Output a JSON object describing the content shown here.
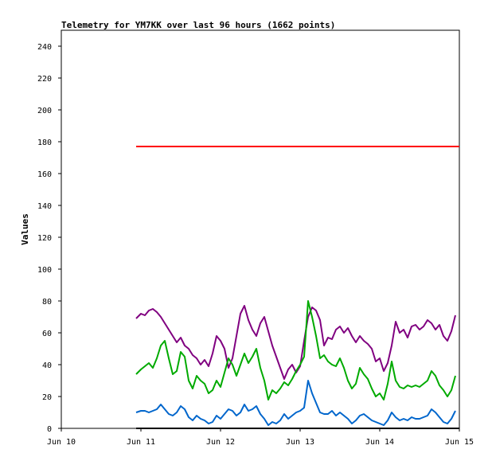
{
  "chart_data": {
    "type": "line",
    "title": "Telemetry for YM7KK over last 96 hours (1662 points)",
    "xlabel": "",
    "ylabel": "Values",
    "x_ticks": [
      "Jun 10",
      "Jun 11",
      "Jun 12",
      "Jun 13",
      "Jun 14",
      "Jun 15"
    ],
    "y_ticks": [
      "0",
      "20",
      "40",
      "60",
      "80",
      "100",
      "120",
      "140",
      "160",
      "180",
      "200",
      "220",
      "240"
    ],
    "xlim": [
      "Jun 10",
      "Jun 15"
    ],
    "ylim": [
      0,
      250
    ],
    "grid": false,
    "legend": "none",
    "x_unit": "days",
    "series": [
      {
        "color": "#ff0000",
        "x": [
          0.94,
          5.0
        ],
        "values": [
          177,
          177
        ]
      },
      {
        "color": "#800080",
        "x": [
          0.94,
          1.0,
          1.05,
          1.1,
          1.15,
          1.2,
          1.25,
          1.3,
          1.35,
          1.4,
          1.45,
          1.5,
          1.55,
          1.6,
          1.65,
          1.7,
          1.75,
          1.8,
          1.85,
          1.9,
          1.95,
          2.0,
          2.05,
          2.1,
          2.15,
          2.2,
          2.25,
          2.3,
          2.35,
          2.4,
          2.45,
          2.5,
          2.55,
          2.6,
          2.65,
          2.7,
          2.75,
          2.8,
          2.85,
          2.9,
          2.95,
          3.0,
          3.05,
          3.1,
          3.15,
          3.2,
          3.25,
          3.3,
          3.35,
          3.4,
          3.45,
          3.5,
          3.55,
          3.6,
          3.65,
          3.7,
          3.75,
          3.8,
          3.85,
          3.9,
          3.95,
          4.0,
          4.05,
          4.1,
          4.15,
          4.2,
          4.25,
          4.3,
          4.35,
          4.4,
          4.45,
          4.5,
          4.55,
          4.6,
          4.65,
          4.7,
          4.75,
          4.8,
          4.85,
          4.9,
          4.95
        ],
        "values": [
          69,
          72,
          71,
          74,
          75,
          73,
          70,
          66,
          62,
          58,
          54,
          57,
          52,
          50,
          46,
          44,
          40,
          43,
          39,
          47,
          58,
          55,
          50,
          38,
          44,
          58,
          72,
          77,
          68,
          62,
          58,
          66,
          70,
          61,
          52,
          45,
          38,
          31,
          37,
          40,
          35,
          39,
          55,
          70,
          76,
          74,
          68,
          52,
          57,
          56,
          62,
          64,
          60,
          63,
          58,
          54,
          58,
          55,
          53,
          50,
          42,
          44,
          36,
          41,
          52,
          67,
          60,
          62,
          57,
          64,
          65,
          62,
          64,
          68,
          66,
          62,
          65,
          58,
          55,
          61,
          71
        ]
      },
      {
        "color": "#00aa00",
        "x": [
          0.94,
          1.0,
          1.05,
          1.1,
          1.15,
          1.2,
          1.25,
          1.3,
          1.35,
          1.4,
          1.45,
          1.5,
          1.55,
          1.6,
          1.65,
          1.7,
          1.75,
          1.8,
          1.85,
          1.9,
          1.95,
          2.0,
          2.05,
          2.1,
          2.15,
          2.2,
          2.25,
          2.3,
          2.35,
          2.4,
          2.45,
          2.5,
          2.55,
          2.6,
          2.65,
          2.7,
          2.75,
          2.8,
          2.85,
          2.9,
          2.95,
          3.0,
          3.05,
          3.1,
          3.15,
          3.2,
          3.25,
          3.3,
          3.35,
          3.4,
          3.45,
          3.5,
          3.55,
          3.6,
          3.65,
          3.7,
          3.75,
          3.8,
          3.85,
          3.9,
          3.95,
          4.0,
          4.05,
          4.1,
          4.15,
          4.2,
          4.25,
          4.3,
          4.35,
          4.4,
          4.45,
          4.5,
          4.55,
          4.6,
          4.65,
          4.7,
          4.75,
          4.8,
          4.85,
          4.9,
          4.95
        ],
        "values": [
          34,
          37,
          39,
          41,
          38,
          44,
          52,
          55,
          44,
          34,
          36,
          48,
          45,
          30,
          25,
          33,
          30,
          28,
          22,
          24,
          30,
          26,
          35,
          44,
          40,
          33,
          40,
          47,
          41,
          45,
          50,
          38,
          30,
          18,
          24,
          22,
          25,
          29,
          27,
          31,
          36,
          40,
          45,
          80,
          70,
          58,
          44,
          46,
          42,
          40,
          39,
          44,
          38,
          30,
          25,
          28,
          38,
          34,
          31,
          25,
          20,
          22,
          18,
          28,
          42,
          30,
          26,
          25,
          27,
          26,
          27,
          26,
          28,
          30,
          36,
          33,
          27,
          24,
          20,
          24,
          33
        ]
      },
      {
        "color": "#0066cc",
        "x": [
          0.94,
          1.0,
          1.05,
          1.1,
          1.15,
          1.2,
          1.25,
          1.3,
          1.35,
          1.4,
          1.45,
          1.5,
          1.55,
          1.6,
          1.65,
          1.7,
          1.75,
          1.8,
          1.85,
          1.9,
          1.95,
          2.0,
          2.05,
          2.1,
          2.15,
          2.2,
          2.25,
          2.3,
          2.35,
          2.4,
          2.45,
          2.5,
          2.55,
          2.6,
          2.65,
          2.7,
          2.75,
          2.8,
          2.85,
          2.9,
          2.95,
          3.0,
          3.05,
          3.1,
          3.15,
          3.2,
          3.25,
          3.3,
          3.35,
          3.4,
          3.45,
          3.5,
          3.55,
          3.6,
          3.65,
          3.7,
          3.75,
          3.8,
          3.85,
          3.9,
          3.95,
          4.0,
          4.05,
          4.1,
          4.15,
          4.2,
          4.25,
          4.3,
          4.35,
          4.4,
          4.45,
          4.5,
          4.55,
          4.6,
          4.65,
          4.7,
          4.75,
          4.8,
          4.85,
          4.9,
          4.95
        ],
        "values": [
          10,
          11,
          11,
          10,
          11,
          12,
          15,
          12,
          9,
          8,
          10,
          14,
          12,
          7,
          5,
          8,
          6,
          5,
          3,
          4,
          8,
          6,
          9,
          12,
          11,
          8,
          10,
          15,
          11,
          12,
          14,
          9,
          6,
          2,
          4,
          3,
          5,
          9,
          6,
          8,
          10,
          11,
          13,
          30,
          22,
          16,
          10,
          9,
          9,
          11,
          8,
          10,
          8,
          6,
          3,
          5,
          8,
          9,
          7,
          5,
          4,
          3,
          2,
          5,
          10,
          7,
          5,
          6,
          5,
          7,
          6,
          6,
          7,
          8,
          12,
          10,
          7,
          4,
          3,
          6,
          11
        ]
      },
      {
        "color": "#000000",
        "x": [
          0.94,
          5.0
        ],
        "values": [
          0,
          0
        ]
      }
    ]
  }
}
